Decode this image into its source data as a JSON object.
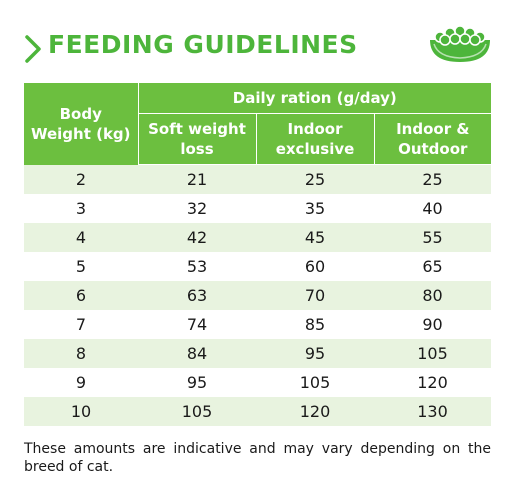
{
  "title": "FEEDING GUIDELINES",
  "icons": {
    "arrow": "chevron-right-icon",
    "bowl": "food-bowl-icon"
  },
  "colors": {
    "accent": "#4db53b",
    "header_fill": "#6cbf3f",
    "stripe": "#e8f3df"
  },
  "table": {
    "first_column_header": "Body Weight (kg)",
    "group_header": "Daily ration (g/day)",
    "columns": [
      "Soft weight loss",
      "Indoor exclusive",
      "Indoor & Outdoor"
    ],
    "rows": [
      [
        "2",
        "21",
        "25",
        "25"
      ],
      [
        "3",
        "32",
        "35",
        "40"
      ],
      [
        "4",
        "42",
        "45",
        "55"
      ],
      [
        "5",
        "53",
        "60",
        "65"
      ],
      [
        "6",
        "63",
        "70",
        "80"
      ],
      [
        "7",
        "74",
        "85",
        "90"
      ],
      [
        "8",
        "84",
        "95",
        "105"
      ],
      [
        "9",
        "95",
        "105",
        "120"
      ],
      [
        "10",
        "105",
        "120",
        "130"
      ]
    ]
  },
  "footnote": "These amounts are indicative and may vary depending on the breed of cat."
}
